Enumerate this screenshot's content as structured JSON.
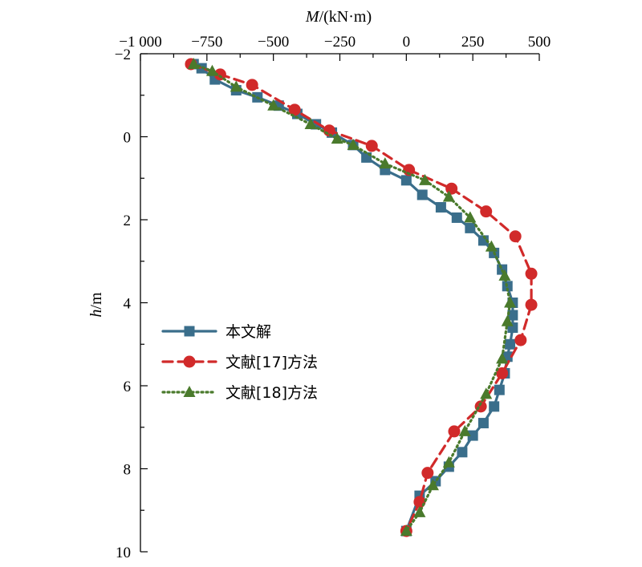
{
  "chart_data": {
    "type": "line",
    "title": "",
    "xlabel": {
      "italic": "M",
      "rest": "/(kN·m)"
    },
    "ylabel": {
      "italic": "h",
      "rest": "/m"
    },
    "xlim": [
      -1000,
      500
    ],
    "ylim": [
      -2,
      10
    ],
    "y_inverted": true,
    "x_axis_position": "top",
    "x_ticks": [
      -1000,
      -750,
      -500,
      -250,
      0,
      250,
      500
    ],
    "x_tick_labels": [
      "−1 000",
      "−750",
      "−500",
      "−250",
      "0",
      "250",
      "500"
    ],
    "y_ticks": [
      -2,
      0,
      2,
      4,
      6,
      8,
      10
    ],
    "y_tick_labels": [
      "−2",
      "0",
      "2",
      "4",
      "6",
      "8",
      "10"
    ],
    "legend_position": "left-middle",
    "series": [
      {
        "name": "本文解",
        "color": "#3a6e8b",
        "marker": "square",
        "line_style": "solid",
        "points": [
          [
            -800,
            -1.75
          ],
          [
            -770,
            -1.65
          ],
          [
            -720,
            -1.38
          ],
          [
            -640,
            -1.12
          ],
          [
            -560,
            -0.95
          ],
          [
            -480,
            -0.75
          ],
          [
            -410,
            -0.55
          ],
          [
            -340,
            -0.3
          ],
          [
            -280,
            -0.1
          ],
          [
            -200,
            0.2
          ],
          [
            -150,
            0.5
          ],
          [
            -80,
            0.8
          ],
          [
            0,
            1.05
          ],
          [
            60,
            1.4
          ],
          [
            130,
            1.7
          ],
          [
            190,
            1.95
          ],
          [
            240,
            2.2
          ],
          [
            290,
            2.5
          ],
          [
            330,
            2.8
          ],
          [
            360,
            3.2
          ],
          [
            380,
            3.6
          ],
          [
            400,
            4.0
          ],
          [
            400,
            4.3
          ],
          [
            400,
            4.6
          ],
          [
            390,
            5.0
          ],
          [
            380,
            5.3
          ],
          [
            370,
            5.7
          ],
          [
            350,
            6.1
          ],
          [
            330,
            6.5
          ],
          [
            290,
            6.9
          ],
          [
            250,
            7.2
          ],
          [
            210,
            7.6
          ],
          [
            160,
            7.95
          ],
          [
            110,
            8.3
          ],
          [
            50,
            8.65
          ],
          [
            0,
            9.5
          ]
        ]
      },
      {
        "name": "文献[17]方法",
        "color": "#d12a2a",
        "marker": "circle",
        "line_style": "dashed",
        "points": [
          [
            -810,
            -1.75
          ],
          [
            -700,
            -1.5
          ],
          [
            -580,
            -1.25
          ],
          [
            -420,
            -0.65
          ],
          [
            -290,
            -0.15
          ],
          [
            -130,
            0.22
          ],
          [
            10,
            0.8
          ],
          [
            170,
            1.25
          ],
          [
            300,
            1.8
          ],
          [
            410,
            2.4
          ],
          [
            470,
            3.3
          ],
          [
            470,
            4.05
          ],
          [
            430,
            4.9
          ],
          [
            360,
            5.7
          ],
          [
            280,
            6.5
          ],
          [
            180,
            7.1
          ],
          [
            80,
            8.1
          ],
          [
            50,
            8.8
          ],
          [
            0,
            9.5
          ]
        ]
      },
      {
        "name": "文献[18]方法",
        "color": "#4a7a2c",
        "marker": "triangle",
        "line_style": "dotted",
        "points": [
          [
            -800,
            -1.75
          ],
          [
            -730,
            -1.58
          ],
          [
            -640,
            -1.2
          ],
          [
            -500,
            -0.75
          ],
          [
            -360,
            -0.3
          ],
          [
            -260,
            0.05
          ],
          [
            -200,
            0.2
          ],
          [
            -80,
            0.65
          ],
          [
            70,
            1.05
          ],
          [
            160,
            1.45
          ],
          [
            240,
            1.95
          ],
          [
            320,
            2.65
          ],
          [
            370,
            3.35
          ],
          [
            390,
            4.0
          ],
          [
            380,
            4.45
          ],
          [
            360,
            5.35
          ],
          [
            300,
            6.2
          ],
          [
            220,
            7.1
          ],
          [
            160,
            7.85
          ],
          [
            100,
            8.4
          ],
          [
            50,
            9.05
          ],
          [
            0,
            9.5
          ]
        ]
      }
    ]
  }
}
